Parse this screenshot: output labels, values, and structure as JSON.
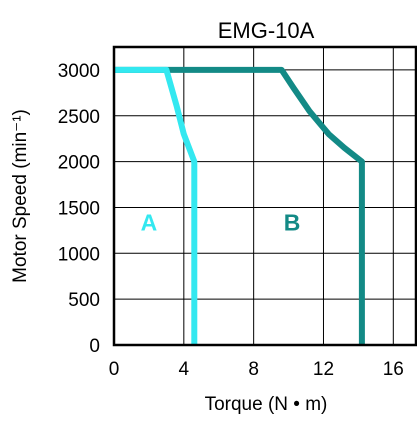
{
  "chart_data": {
    "type": "line",
    "title": "EMG-10A",
    "xlabel": "Torque (N • m)",
    "ylabel": "Motor  Speed (min⁻¹)",
    "xlim": [
      0,
      17.3
    ],
    "ylim": [
      0,
      3250
    ],
    "xticks": [
      0,
      4,
      8,
      12,
      16
    ],
    "yticks": [
      0,
      500,
      1000,
      1500,
      2000,
      2500,
      3000
    ],
    "grid": true,
    "series": [
      {
        "name": "A",
        "color": "#33e8f0",
        "points": [
          [
            0,
            3000
          ],
          [
            3.0,
            3000
          ],
          [
            3.6,
            2600
          ],
          [
            4.0,
            2300
          ],
          [
            4.6,
            2000
          ],
          [
            4.6,
            0
          ]
        ]
      },
      {
        "name": "B",
        "color": "#138a86",
        "points": [
          [
            0,
            3000
          ],
          [
            9.6,
            3000
          ],
          [
            10.3,
            2800
          ],
          [
            11.2,
            2550
          ],
          [
            12.3,
            2300
          ],
          [
            13.2,
            2150
          ],
          [
            14.2,
            2000
          ],
          [
            14.2,
            0
          ]
        ]
      }
    ],
    "region_labels": [
      {
        "text": "A",
        "x": 2.0,
        "y": 1250,
        "color": "#33e8f0"
      },
      {
        "text": "B",
        "x": 10.2,
        "y": 1250,
        "color": "#138a86"
      }
    ]
  }
}
